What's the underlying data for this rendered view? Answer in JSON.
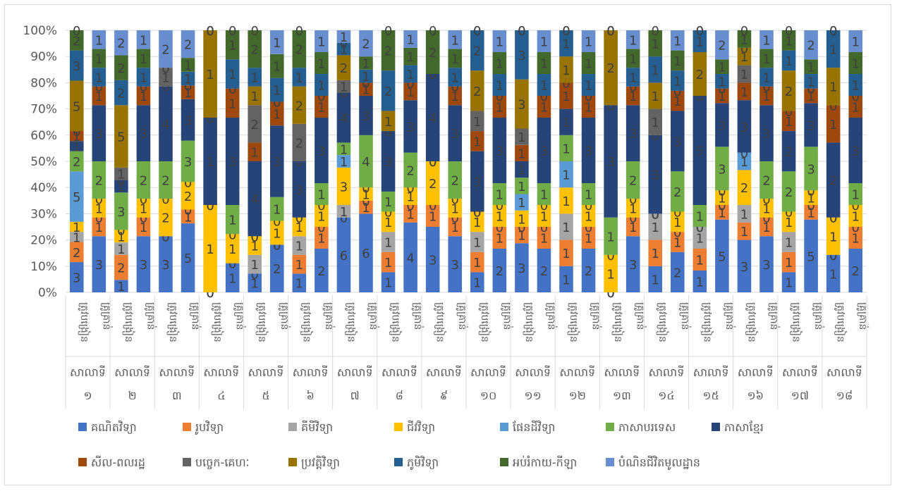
{
  "chart_data": {
    "type": "bar",
    "stacked": "percent",
    "grid": true,
    "legend_position": "bottom",
    "y_ticks": [
      "0%",
      "10%",
      "20%",
      "30%",
      "40%",
      "50%",
      "60%",
      "70%",
      "80%",
      "90%",
      "100%"
    ],
    "ylim": [
      0,
      100
    ],
    "bar_labels": [
      "ត្រូវបង្រៀន",
      "គ្រូគ្រាន់"
    ],
    "schools": [
      "សាលាទី ១",
      "សាលាទី ២",
      "សាលាទី ៣",
      "សាលាទី ៤",
      "សាលាទី ៥",
      "សាលាទី ៦",
      "សាលាទី ៧",
      "សាលាទី ៨",
      "សាលាទី ៩",
      "សាលាទី ១០",
      "សាលាទី ១១",
      "សាលាទី ១២",
      "សាលាទី ១៣",
      "សាលាទី ១៤",
      "សាលាទី ១៥",
      "សាលាទី ១៦",
      "សាលាទី ១៧",
      "សាលាទី ១៨"
    ],
    "series": [
      {
        "name": "គណិតវិទ្យា",
        "color": "#4472c4",
        "values": [
          3,
          3,
          1,
          3,
          3,
          5,
          0,
          1,
          1,
          2,
          1,
          2,
          6,
          6,
          1,
          4,
          3,
          3,
          1,
          2,
          3,
          2,
          1,
          2,
          0,
          3,
          1,
          2,
          1,
          5,
          3,
          3,
          1,
          5,
          1,
          2
        ]
      },
      {
        "name": "រូបវិទ្យា",
        "color": "#ed7d31",
        "values": [
          2,
          1,
          2,
          1,
          0,
          1,
          0,
          0,
          0,
          0,
          1,
          1,
          0,
          1,
          1,
          1,
          1,
          1,
          1,
          1,
          1,
          1,
          1,
          1,
          0,
          1,
          1,
          1,
          1,
          1,
          1,
          1,
          1,
          1,
          0,
          1
        ]
      },
      {
        "name": "គីមីវិទ្យា",
        "color": "#a5a5a5",
        "values": [
          1,
          0,
          1,
          0,
          0,
          0,
          0,
          0,
          1,
          0,
          1,
          0,
          1,
          0,
          1,
          0,
          0,
          0,
          1,
          0,
          0,
          0,
          1,
          0,
          0,
          0,
          1,
          0,
          1,
          0,
          1,
          0,
          1,
          0,
          0,
          0
        ]
      },
      {
        "name": "ជីវវិទ្យា",
        "color": "#ffc000",
        "values": [
          1,
          1,
          1,
          1,
          2,
          2,
          1,
          1,
          1,
          1,
          1,
          1,
          3,
          1,
          1,
          1,
          2,
          1,
          1,
          1,
          1,
          1,
          1,
          1,
          1,
          1,
          0,
          1,
          0,
          1,
          2,
          1,
          1,
          1,
          1,
          1
        ]
      },
      {
        "name": "ផែនដីវិទ្យា",
        "color": "#5b9bd5",
        "values": [
          5,
          0,
          0,
          0,
          0,
          0,
          0,
          0,
          0,
          0,
          0,
          0,
          1,
          0,
          0,
          0,
          0,
          0,
          0,
          0,
          1,
          0,
          1,
          0,
          0,
          0,
          0,
          0,
          0,
          0,
          1,
          0,
          0,
          0,
          0,
          0
        ]
      },
      {
        "name": "ភាសាបរទេស",
        "color": "#70ad47",
        "values": [
          2,
          2,
          3,
          2,
          2,
          3,
          0,
          1,
          0,
          1,
          0,
          1,
          1,
          4,
          1,
          2,
          0,
          2,
          0,
          1,
          1,
          1,
          1,
          1,
          1,
          2,
          0,
          2,
          1,
          3,
          0,
          2,
          2,
          3,
          0,
          1
        ]
      },
      {
        "name": "ភាសាខ្មែរ",
        "color": "#264478",
        "values": [
          1,
          3,
          1,
          3,
          4,
          3,
          1,
          3,
          4,
          3,
          3,
          3,
          4,
          3,
          3,
          3,
          4,
          3,
          3,
          3,
          1,
          3,
          1,
          3,
          3,
          3,
          3,
          3,
          5,
          3,
          3,
          3,
          2,
          3,
          2,
          3
        ]
      },
      {
        "name": "សីល-ពលរដ្ឋ",
        "color": "#9e480e",
        "values": [
          1,
          1,
          0,
          1,
          0,
          1,
          0,
          1,
          1,
          1,
          0,
          1,
          0,
          1,
          0,
          1,
          0,
          1,
          1,
          1,
          1,
          1,
          1,
          1,
          0,
          1,
          0,
          1,
          0,
          1,
          1,
          1,
          1,
          1,
          1,
          1
        ]
      },
      {
        "name": "បច្ចេក-គេហៈ",
        "color": "#636363",
        "values": [
          0,
          0,
          1,
          0,
          1,
          0,
          0,
          0,
          2,
          0,
          2,
          0,
          1,
          0,
          0,
          0,
          0,
          0,
          1,
          0,
          1,
          0,
          0,
          0,
          0,
          0,
          1,
          0,
          0,
          0,
          1,
          0,
          0,
          0,
          0,
          0
        ]
      },
      {
        "name": "ប្រវត្តិវិទ្យា",
        "color": "#997300",
        "values": [
          5,
          0,
          5,
          0,
          0,
          0,
          1,
          0,
          1,
          0,
          2,
          0,
          2,
          0,
          1,
          0,
          0,
          0,
          2,
          0,
          3,
          0,
          1,
          0,
          2,
          0,
          1,
          0,
          2,
          0,
          1,
          0,
          2,
          0,
          1,
          0
        ]
      },
      {
        "name": "ភូមិវិទ្យា",
        "color": "#255e91",
        "values": [
          3,
          1,
          2,
          1,
          0,
          1,
          0,
          1,
          1,
          1,
          1,
          1,
          1,
          1,
          2,
          1,
          0,
          1,
          2,
          1,
          3,
          1,
          1,
          1,
          0,
          1,
          1,
          1,
          1,
          1,
          0,
          1,
          1,
          1,
          1,
          1
        ]
      },
      {
        "name": "អប់រំកាយ-កីឡា",
        "color": "#43682b",
        "values": [
          2,
          1,
          2,
          1,
          0,
          1,
          0,
          1,
          2,
          1,
          2,
          1,
          0,
          1,
          2,
          1,
          2,
          1,
          0,
          1,
          0,
          1,
          0,
          1,
          0,
          1,
          1,
          1,
          0,
          1,
          1,
          1,
          1,
          1,
          0,
          1
        ]
      },
      {
        "name": "បំណិនជីវិតមូលដ្ឋាន",
        "color": "#698ed0",
        "values": [
          0,
          1,
          2,
          1,
          2,
          2,
          0,
          0,
          0,
          1,
          0,
          1,
          1,
          2,
          0,
          1,
          0,
          1,
          0,
          1,
          0,
          1,
          0,
          1,
          0,
          1,
          0,
          1,
          0,
          2,
          0,
          1,
          0,
          2,
          0,
          1
        ]
      }
    ]
  }
}
